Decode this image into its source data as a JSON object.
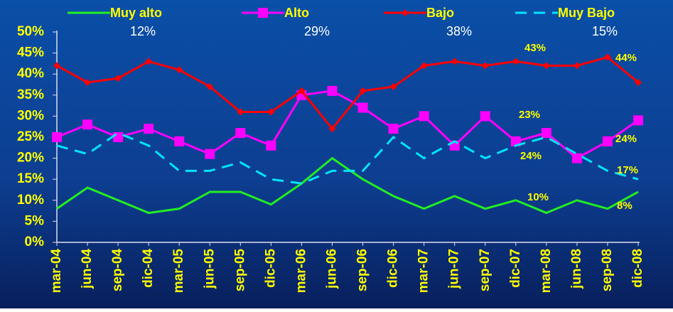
{
  "chart_data": {
    "type": "line",
    "categories": [
      "mar-04",
      "jun-04",
      "sep-04",
      "dic-04",
      "mar-05",
      "jun-05",
      "sep-05",
      "dic-05",
      "mar-06",
      "jun-06",
      "sep-06",
      "dic-06",
      "mar-07",
      "jun-07",
      "sep-07",
      "dic-07",
      "mar-08",
      "jun-08",
      "sep-08",
      "dic-08"
    ],
    "series": [
      {
        "name": "Muy alto",
        "share": "12%",
        "color": "#22ee22",
        "marker": "none",
        "dash": false,
        "values": [
          8,
          13,
          10,
          7,
          8,
          12,
          12,
          9,
          14,
          20,
          15,
          11,
          8,
          11,
          8,
          10,
          7,
          10,
          8,
          12
        ]
      },
      {
        "name": "Alto",
        "share": "29%",
        "color": "#ff00ff",
        "marker": "square",
        "dash": false,
        "values": [
          25,
          28,
          25,
          27,
          24,
          21,
          26,
          23,
          35,
          36,
          32,
          27,
          30,
          23,
          30,
          24,
          26,
          20,
          24,
          29
        ]
      },
      {
        "name": "Bajo",
        "share": "38%",
        "color": "#ff0000",
        "marker": "diamond",
        "dash": false,
        "values": [
          42,
          38,
          39,
          43,
          41,
          37,
          31,
          31,
          36,
          27,
          36,
          37,
          42,
          43,
          42,
          43,
          42,
          42,
          44,
          38
        ]
      },
      {
        "name": "Muy Bajo",
        "share": "15%",
        "color": "#00e5ff",
        "marker": "none",
        "dash": true,
        "values": [
          23,
          21,
          26,
          23,
          17,
          17,
          19,
          15,
          14,
          17,
          17,
          25,
          20,
          24,
          20,
          23,
          25,
          21,
          17,
          15
        ]
      }
    ],
    "annotations": [
      "43%",
      "44%",
      "23%",
      "24%",
      "24%",
      "17%",
      "10%",
      "8%"
    ],
    "ylim": [
      0,
      50
    ],
    "yticks": [
      {
        "value": 0,
        "label": "0%"
      },
      {
        "value": 5,
        "label": "5%"
      },
      {
        "value": 10,
        "label": "10%"
      },
      {
        "value": 15,
        "label": "15%"
      },
      {
        "value": 20,
        "label": "20%"
      },
      {
        "value": 25,
        "label": "25%"
      },
      {
        "value": 30,
        "label": "30%"
      },
      {
        "value": 35,
        "label": "35%"
      },
      {
        "value": 40,
        "label": "40%"
      },
      {
        "value": 45,
        "label": "45%"
      },
      {
        "value": 50,
        "label": "50%"
      }
    ]
  }
}
